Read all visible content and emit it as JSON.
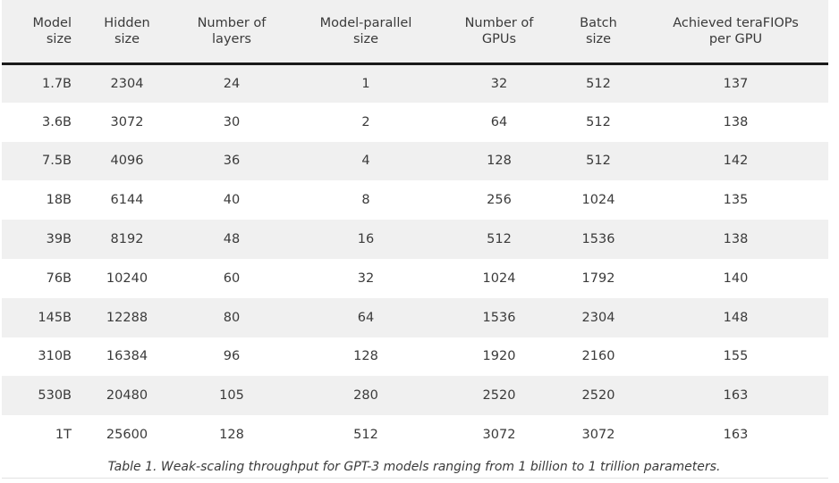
{
  "table": {
    "headers": [
      "Model\nsize",
      "Hidden\nsize",
      "Number of\nlayers",
      "Model-parallel\nsize",
      "Number of\nGPUs",
      "Batch\nsize",
      "Achieved teraFIOPs\nper GPU"
    ],
    "rows": [
      [
        "1.7B",
        "2304",
        "24",
        "1",
        "32",
        "512",
        "137"
      ],
      [
        "3.6B",
        "3072",
        "30",
        "2",
        "64",
        "512",
        "138"
      ],
      [
        "7.5B",
        "4096",
        "36",
        "4",
        "128",
        "512",
        "142"
      ],
      [
        "18B",
        "6144",
        "40",
        "8",
        "256",
        "1024",
        "135"
      ],
      [
        "39B",
        "8192",
        "48",
        "16",
        "512",
        "1536",
        "138"
      ],
      [
        "76B",
        "10240",
        "60",
        "32",
        "1024",
        "1792",
        "140"
      ],
      [
        "145B",
        "12288",
        "80",
        "64",
        "1536",
        "2304",
        "148"
      ],
      [
        "310B",
        "16384",
        "96",
        "128",
        "1920",
        "2160",
        "155"
      ],
      [
        "530B",
        "20480",
        "105",
        "280",
        "2520",
        "2520",
        "163"
      ],
      [
        "1T",
        "25600",
        "128",
        "512",
        "3072",
        "3072",
        "163"
      ]
    ]
  },
  "caption": "Table 1. Weak-scaling throughput for GPT-3 models ranging from 1 billion to 1 trillion parameters."
}
